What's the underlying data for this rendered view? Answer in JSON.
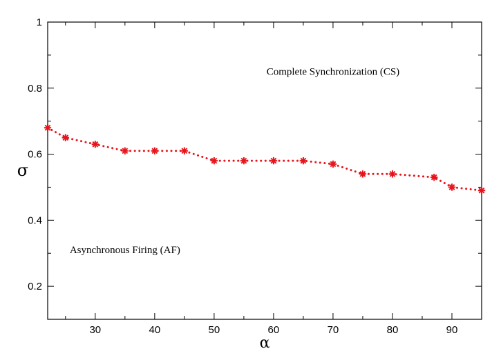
{
  "chart_data": {
    "type": "line",
    "title": "",
    "xlabel": "α",
    "ylabel": "σ",
    "xlim": [
      22,
      95
    ],
    "ylim": [
      0.1,
      1.0
    ],
    "x_ticks": [
      30,
      40,
      50,
      60,
      70,
      80,
      90
    ],
    "y_ticks": [
      0.2,
      0.4,
      0.6,
      0.8,
      1.0
    ],
    "x_tick_labels": [
      "30",
      "40",
      "50",
      "60",
      "70",
      "80",
      "90"
    ],
    "y_tick_labels": [
      "0.2",
      "0.4",
      "0.6",
      "0.8",
      "1"
    ],
    "grid": false,
    "series": [
      {
        "color": "#e8141b",
        "line_style": "dotted",
        "marker": "asterisk",
        "x": [
          22,
          25,
          30,
          35,
          40,
          45,
          50,
          55,
          60,
          65,
          70,
          75,
          80,
          87,
          90,
          95
        ],
        "y": [
          0.68,
          0.65,
          0.63,
          0.61,
          0.61,
          0.61,
          0.58,
          0.58,
          0.58,
          0.58,
          0.57,
          0.54,
          0.54,
          0.53,
          0.5,
          0.49
        ]
      }
    ],
    "annotations": [
      {
        "text": "Complete Synchronization (CS)",
        "x": 70,
        "y": 0.84
      },
      {
        "text": "Asynchronous Firing (AF)",
        "x": 35,
        "y": 0.3
      }
    ]
  }
}
